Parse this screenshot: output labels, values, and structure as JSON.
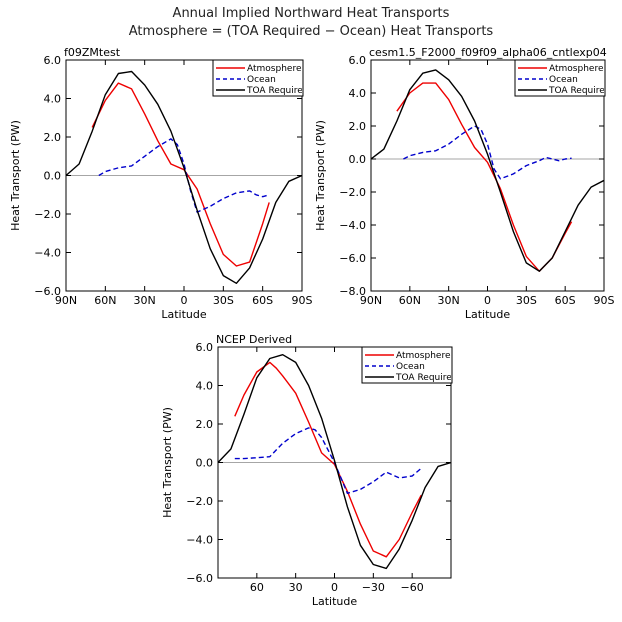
{
  "figure": {
    "title_line1": "Annual Implied Northward Heat Transports",
    "title_line2": "Atmosphere = (TOA Required − Ocean) Heat Transports"
  },
  "colors": {
    "atmosphere": "#ee0000",
    "ocean": "#0000cc",
    "toa": "#000000",
    "zero_line": "#888888"
  },
  "chart_data": [
    {
      "type": "line",
      "panel_title": "f09ZMtest",
      "xlabel": "Latitude",
      "ylabel": "Heat Transport (PW)",
      "xlim": [
        90,
        -90
      ],
      "ylim": [
        -6,
        6
      ],
      "xticks": [
        90,
        60,
        30,
        0,
        -30,
        -60,
        -90
      ],
      "xtick_labels": [
        "90N",
        "60N",
        "30N",
        "0",
        "30S",
        "60S",
        "90S"
      ],
      "yticks": [
        -6,
        -4,
        -2,
        0,
        2,
        4,
        6
      ],
      "ytick_labels": [
        "−6.0",
        "−4.0",
        "−2.0",
        "0.0",
        "2.0",
        "4.0",
        "6.0"
      ],
      "legend": [
        "Atmosphere",
        "Ocean",
        "TOA Required"
      ],
      "series": [
        {
          "name": "Atmosphere",
          "key": "atmosphere",
          "dash": false,
          "x": [
            70,
            60,
            50,
            40,
            30,
            20,
            10,
            0,
            -10,
            -20,
            -30,
            -40,
            -50,
            -60,
            -65
          ],
          "y": [
            2.5,
            3.9,
            4.8,
            4.5,
            3.2,
            1.8,
            0.6,
            0.3,
            -0.7,
            -2.5,
            -4.1,
            -4.7,
            -4.5,
            -2.5,
            -1.4
          ]
        },
        {
          "name": "Ocean",
          "key": "ocean",
          "dash": true,
          "x": [
            65,
            60,
            50,
            40,
            30,
            20,
            10,
            5,
            0,
            -5,
            -10,
            -20,
            -30,
            -40,
            -50,
            -55,
            -60,
            -65
          ],
          "y": [
            0.0,
            0.2,
            0.4,
            0.5,
            1.0,
            1.5,
            1.9,
            1.6,
            0.6,
            -0.8,
            -1.9,
            -1.6,
            -1.2,
            -0.9,
            -0.8,
            -1.0,
            -1.1,
            -1.0
          ]
        },
        {
          "name": "TOA Required",
          "key": "toa",
          "dash": false,
          "x": [
            90,
            80,
            70,
            60,
            50,
            40,
            30,
            20,
            10,
            0,
            -10,
            -20,
            -30,
            -40,
            -50,
            -60,
            -70,
            -80,
            -90
          ],
          "y": [
            0.0,
            0.6,
            2.3,
            4.2,
            5.3,
            5.4,
            4.7,
            3.7,
            2.3,
            0.4,
            -1.8,
            -3.8,
            -5.2,
            -5.6,
            -4.8,
            -3.3,
            -1.4,
            -0.3,
            0.0
          ]
        }
      ]
    },
    {
      "type": "line",
      "panel_title": "cesm1.5_F2000_f09f09_alpha06_cntlexp04",
      "xlabel": "Latitude",
      "ylabel": "Heat Transport (PW)",
      "xlim": [
        90,
        -90
      ],
      "ylim": [
        -8,
        6
      ],
      "xticks": [
        90,
        60,
        30,
        0,
        -30,
        -60,
        -90
      ],
      "xtick_labels": [
        "90N",
        "60N",
        "30N",
        "0",
        "30S",
        "60S",
        "90S"
      ],
      "yticks": [
        -8,
        -6,
        -4,
        -2,
        0,
        2,
        4,
        6
      ],
      "ytick_labels": [
        "−8.0",
        "−6.0",
        "−4.0",
        "−2.0",
        "0.0",
        "2.0",
        "4.0",
        "6.0"
      ],
      "legend": [
        "Atmosphere",
        "Ocean",
        "TOA Required"
      ],
      "series": [
        {
          "name": "Atmosphere",
          "key": "atmosphere",
          "dash": false,
          "x": [
            70,
            60,
            50,
            40,
            30,
            20,
            10,
            0,
            -10,
            -20,
            -30,
            -40,
            -50,
            -60,
            -65
          ],
          "y": [
            2.9,
            4.0,
            4.6,
            4.6,
            3.6,
            2.1,
            0.7,
            -0.2,
            -1.8,
            -4.0,
            -5.9,
            -6.8,
            -6.0,
            -4.5,
            -3.8
          ]
        },
        {
          "name": "Ocean",
          "key": "ocean",
          "dash": true,
          "x": [
            65,
            60,
            50,
            40,
            30,
            20,
            10,
            5,
            0,
            -5,
            -10,
            -20,
            -30,
            -40,
            -45,
            -50,
            -55,
            -60,
            -65
          ],
          "y": [
            0.0,
            0.2,
            0.4,
            0.5,
            0.9,
            1.5,
            2.0,
            1.8,
            0.9,
            -0.6,
            -1.2,
            -0.9,
            -0.4,
            -0.1,
            0.1,
            0.0,
            -0.1,
            0.0,
            0.05
          ]
        },
        {
          "name": "TOA Required",
          "key": "toa",
          "dash": false,
          "x": [
            90,
            80,
            70,
            60,
            50,
            40,
            30,
            20,
            10,
            0,
            -10,
            -20,
            -30,
            -40,
            -50,
            -60,
            -70,
            -80,
            -90
          ],
          "y": [
            0.0,
            0.6,
            2.3,
            4.2,
            5.2,
            5.4,
            4.8,
            3.8,
            2.3,
            0.3,
            -2.0,
            -4.4,
            -6.3,
            -6.8,
            -6.0,
            -4.4,
            -2.8,
            -1.7,
            -1.3
          ]
        }
      ]
    },
    {
      "type": "line",
      "panel_title": "NCEP Derived",
      "xlabel": "Latitude",
      "ylabel": "Heat Transport (PW)",
      "xlim": [
        90,
        -90
      ],
      "ylim": [
        -6,
        6
      ],
      "xticks": [
        60,
        30,
        0,
        -30,
        -60
      ],
      "xtick_labels": [
        "60",
        "30",
        "0",
        "−30",
        "−60"
      ],
      "yticks": [
        -6,
        -4,
        -2,
        0,
        2,
        4,
        6
      ],
      "ytick_labels": [
        "−6.0",
        "−4.0",
        "−2.0",
        "0.0",
        "2.0",
        "4.0",
        "6.0"
      ],
      "legend": [
        "Atmosphere",
        "Ocean",
        "TOA Required"
      ],
      "series": [
        {
          "name": "Atmosphere",
          "key": "atmosphere",
          "dash": false,
          "x": [
            77,
            70,
            60,
            50,
            45,
            40,
            30,
            20,
            10,
            0,
            -10,
            -20,
            -30,
            -40,
            -50,
            -60,
            -67
          ],
          "y": [
            2.4,
            3.5,
            4.7,
            5.2,
            4.9,
            4.5,
            3.6,
            2.1,
            0.5,
            -0.1,
            -1.5,
            -3.2,
            -4.6,
            -4.9,
            -4.0,
            -2.6,
            -1.7
          ]
        },
        {
          "name": "Ocean",
          "key": "ocean",
          "dash": true,
          "x": [
            77,
            70,
            60,
            50,
            40,
            30,
            20,
            15,
            10,
            0,
            -10,
            -20,
            -30,
            -40,
            -50,
            -60,
            -67
          ],
          "y": [
            0.2,
            0.2,
            0.25,
            0.3,
            1.0,
            1.5,
            1.8,
            1.7,
            1.3,
            0.0,
            -1.6,
            -1.4,
            -1.0,
            -0.5,
            -0.8,
            -0.7,
            -0.3
          ]
        },
        {
          "name": "TOA Required",
          "key": "toa",
          "dash": false,
          "x": [
            90,
            80,
            70,
            60,
            50,
            40,
            30,
            20,
            10,
            0,
            -10,
            -20,
            -30,
            -40,
            -50,
            -60,
            -70,
            -80,
            -90
          ],
          "y": [
            0.0,
            0.7,
            2.5,
            4.4,
            5.4,
            5.6,
            5.2,
            4.0,
            2.3,
            0.1,
            -2.3,
            -4.3,
            -5.3,
            -5.5,
            -4.5,
            -3.0,
            -1.3,
            -0.2,
            0.0
          ]
        }
      ]
    }
  ]
}
